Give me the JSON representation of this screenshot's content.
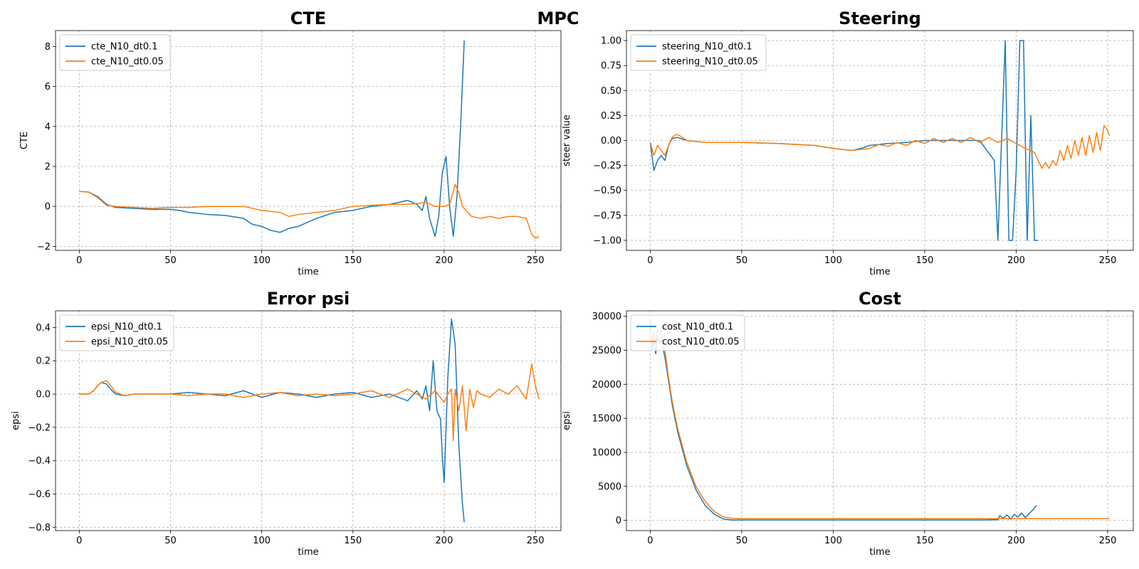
{
  "figure_title": "MPC",
  "chart_data": [
    {
      "type": "line",
      "title": "CTE",
      "xlabel": "time",
      "ylabel": "CTE",
      "xlim": [
        -13,
        264
      ],
      "ylim": [
        -2.2,
        8.8
      ],
      "xticks": [
        0,
        50,
        100,
        150,
        200,
        250
      ],
      "yticks": [
        -2,
        0,
        2,
        4,
        6,
        8
      ],
      "ytick_labels": [
        "−2",
        "0",
        "2",
        "4",
        "6",
        "8"
      ],
      "grid": true,
      "legend_position": "upper-left",
      "series": [
        {
          "name": "cte_N10_dt0.1",
          "color": "#1f77b4",
          "x": [
            0,
            5,
            10,
            15,
            20,
            30,
            40,
            50,
            55,
            60,
            70,
            80,
            90,
            95,
            100,
            105,
            110,
            115,
            120,
            130,
            140,
            150,
            160,
            170,
            180,
            185,
            188,
            190,
            192,
            195,
            197,
            199,
            201,
            203,
            205,
            207,
            209,
            211
          ],
          "y": [
            0.75,
            0.72,
            0.5,
            0.1,
            -0.05,
            -0.1,
            -0.15,
            -0.15,
            -0.2,
            -0.3,
            -0.4,
            -0.45,
            -0.6,
            -0.9,
            -1.0,
            -1.2,
            -1.3,
            -1.1,
            -1.0,
            -0.6,
            -0.3,
            -0.2,
            0.0,
            0.1,
            0.3,
            0.1,
            -0.2,
            0.5,
            -0.6,
            -1.5,
            -0.5,
            1.7,
            2.5,
            0.0,
            -1.5,
            0.5,
            4.0,
            8.3
          ]
        },
        {
          "name": "cte_N10_dt0.05",
          "color": "#ff7f0e",
          "x": [
            0,
            5,
            10,
            15,
            20,
            30,
            40,
            50,
            60,
            70,
            80,
            90,
            100,
            110,
            115,
            120,
            130,
            140,
            150,
            160,
            170,
            180,
            190,
            195,
            200,
            203,
            206,
            208,
            210,
            215,
            220,
            225,
            230,
            235,
            240,
            245,
            248,
            250,
            252
          ],
          "y": [
            0.75,
            0.72,
            0.45,
            0.05,
            0.0,
            -0.05,
            -0.1,
            -0.05,
            -0.05,
            0.0,
            0.0,
            0.0,
            -0.2,
            -0.3,
            -0.5,
            -0.4,
            -0.3,
            -0.2,
            0.0,
            0.05,
            0.1,
            0.1,
            0.2,
            0.0,
            0.0,
            0.1,
            1.1,
            0.7,
            0.0,
            -0.5,
            -0.6,
            -0.5,
            -0.6,
            -0.5,
            -0.5,
            -0.6,
            -1.4,
            -1.6,
            -1.5
          ]
        }
      ]
    },
    {
      "type": "line",
      "title": "Steering",
      "xlabel": "time",
      "ylabel": "steer value",
      "xlim": [
        -13,
        264
      ],
      "ylim": [
        -1.1,
        1.1
      ],
      "xticks": [
        0,
        50,
        100,
        150,
        200,
        250
      ],
      "yticks": [
        -1.0,
        -0.75,
        -0.5,
        -0.25,
        0.0,
        0.25,
        0.5,
        0.75,
        1.0
      ],
      "ytick_labels": [
        "−1.00",
        "−0.75",
        "−0.50",
        "−0.25",
        "0.00",
        "0.25",
        "0.50",
        "0.75",
        "1.00"
      ],
      "grid": true,
      "legend_position": "upper-left",
      "series": [
        {
          "name": "steering_N10_dt0.1",
          "color": "#1f77b4",
          "x": [
            0,
            2,
            4,
            6,
            8,
            10,
            12,
            15,
            20,
            30,
            50,
            70,
            90,
            100,
            110,
            115,
            120,
            130,
            140,
            150,
            160,
            170,
            180,
            188,
            190,
            192,
            194,
            196,
            198,
            200,
            202,
            204,
            206,
            208,
            210,
            212
          ],
          "y": [
            -0.02,
            -0.3,
            -0.2,
            -0.15,
            -0.2,
            -0.05,
            0.02,
            0.03,
            0.0,
            -0.02,
            -0.02,
            -0.03,
            -0.05,
            -0.08,
            -0.1,
            -0.08,
            -0.05,
            -0.03,
            -0.02,
            0.0,
            0.0,
            0.0,
            0.0,
            -0.2,
            -1.0,
            0.0,
            1.0,
            -1.0,
            -1.0,
            -0.3,
            1.0,
            1.0,
            -1.0,
            0.25,
            -1.0,
            -1.0
          ]
        },
        {
          "name": "steering_N10_dt0.05",
          "color": "#ff7f0e",
          "x": [
            0,
            2,
            4,
            6,
            8,
            10,
            12,
            14,
            16,
            20,
            30,
            50,
            70,
            90,
            100,
            110,
            120,
            125,
            130,
            135,
            140,
            145,
            150,
            155,
            160,
            165,
            170,
            175,
            180,
            185,
            190,
            195,
            200,
            205,
            210,
            212,
            214,
            216,
            218,
            220,
            222,
            224,
            226,
            228,
            230,
            232,
            234,
            236,
            238,
            240,
            242,
            244,
            246,
            248,
            250,
            251
          ],
          "y": [
            -0.02,
            -0.15,
            -0.05,
            -0.1,
            -0.15,
            -0.05,
            0.03,
            0.06,
            0.05,
            0.0,
            -0.02,
            -0.02,
            -0.03,
            -0.05,
            -0.08,
            -0.1,
            -0.08,
            -0.04,
            -0.06,
            -0.02,
            -0.05,
            0.0,
            -0.03,
            0.02,
            -0.02,
            0.02,
            -0.02,
            0.03,
            -0.02,
            0.03,
            -0.02,
            0.02,
            -0.03,
            -0.08,
            -0.12,
            -0.2,
            -0.28,
            -0.22,
            -0.28,
            -0.2,
            -0.25,
            -0.1,
            -0.2,
            -0.05,
            -0.18,
            0.0,
            -0.15,
            0.03,
            -0.15,
            0.05,
            -0.12,
            0.08,
            -0.1,
            0.15,
            0.1,
            0.05
          ]
        }
      ]
    },
    {
      "type": "line",
      "title": "Error psi",
      "xlabel": "time",
      "ylabel": "epsi",
      "xlim": [
        -13,
        264
      ],
      "ylim": [
        -0.82,
        0.5
      ],
      "xticks": [
        0,
        50,
        100,
        150,
        200,
        250
      ],
      "yticks": [
        -0.8,
        -0.6,
        -0.4,
        -0.2,
        0.0,
        0.2,
        0.4
      ],
      "ytick_labels": [
        "−0.8",
        "−0.6",
        "−0.4",
        "−0.2",
        "0.0",
        "0.2",
        "0.4"
      ],
      "grid": true,
      "legend_position": "upper-left",
      "series": [
        {
          "name": "epsi_N10_dt0.1",
          "color": "#1f77b4",
          "x": [
            0,
            5,
            8,
            10,
            12,
            15,
            18,
            20,
            25,
            30,
            50,
            60,
            70,
            80,
            90,
            100,
            110,
            120,
            130,
            140,
            150,
            160,
            170,
            180,
            185,
            188,
            190,
            192,
            194,
            196,
            198,
            199,
            200,
            202,
            204,
            206,
            208,
            210,
            211
          ],
          "y": [
            0.0,
            0.0,
            0.02,
            0.05,
            0.07,
            0.06,
            0.02,
            0.0,
            -0.01,
            0.0,
            0.0,
            0.01,
            0.0,
            -0.01,
            0.02,
            -0.02,
            0.01,
            0.0,
            -0.02,
            0.0,
            0.01,
            -0.02,
            0.0,
            -0.04,
            0.02,
            -0.03,
            0.05,
            -0.1,
            0.2,
            -0.1,
            -0.15,
            -0.38,
            -0.53,
            0.1,
            0.45,
            0.3,
            -0.3,
            -0.66,
            -0.77
          ]
        },
        {
          "name": "epsi_N10_dt0.05",
          "color": "#ff7f0e",
          "x": [
            0,
            5,
            8,
            10,
            12,
            15,
            18,
            20,
            25,
            30,
            50,
            60,
            70,
            80,
            90,
            100,
            110,
            120,
            130,
            140,
            150,
            160,
            170,
            180,
            190,
            195,
            200,
            202,
            204,
            205,
            206,
            208,
            210,
            212,
            214,
            216,
            218,
            220,
            225,
            230,
            235,
            240,
            245,
            248,
            250,
            252
          ],
          "y": [
            0.0,
            0.0,
            0.02,
            0.05,
            0.07,
            0.08,
            0.04,
            0.01,
            -0.01,
            0.0,
            0.0,
            -0.01,
            0.0,
            0.0,
            -0.02,
            0.0,
            0.01,
            -0.01,
            0.0,
            -0.01,
            0.0,
            0.02,
            -0.02,
            0.03,
            -0.03,
            0.02,
            -0.05,
            0.0,
            0.03,
            -0.28,
            0.03,
            -0.1,
            0.05,
            -0.22,
            0.03,
            -0.08,
            0.02,
            0.0,
            -0.02,
            0.03,
            0.0,
            0.05,
            -0.03,
            0.18,
            0.05,
            -0.03
          ]
        }
      ]
    },
    {
      "type": "line",
      "title": "Cost",
      "xlabel": "time",
      "ylabel": "epsi",
      "xlim": [
        -13,
        264
      ],
      "ylim": [
        -1500,
        30800
      ],
      "xticks": [
        0,
        50,
        100,
        150,
        200,
        250
      ],
      "yticks": [
        0,
        5000,
        10000,
        15000,
        20000,
        25000,
        30000
      ],
      "ytick_labels": [
        "0",
        "5000",
        "10000",
        "15000",
        "20000",
        "25000",
        "30000"
      ],
      "grid": true,
      "legend_position": "upper-left",
      "series": [
        {
          "name": "cost_N10_dt0.1",
          "color": "#1f77b4",
          "x": [
            0,
            1,
            2,
            3,
            4,
            5,
            6,
            8,
            10,
            12,
            15,
            18,
            20,
            25,
            30,
            35,
            40,
            45,
            50,
            100,
            150,
            180,
            190,
            191,
            193,
            195,
            197,
            199,
            201,
            203,
            205,
            207,
            209,
            211
          ],
          "y": [
            29500,
            25000,
            26500,
            24500,
            27000,
            26000,
            26500,
            24000,
            20500,
            17000,
            13000,
            10000,
            8000,
            4500,
            2200,
            900,
            200,
            50,
            50,
            50,
            50,
            60,
            100,
            700,
            300,
            800,
            200,
            900,
            500,
            1100,
            400,
            1000,
            1500,
            2200
          ]
        },
        {
          "name": "cost_N10_dt0.05",
          "color": "#ff7f0e",
          "x": [
            0,
            1,
            2,
            3,
            4,
            5,
            6,
            8,
            10,
            12,
            15,
            18,
            20,
            25,
            30,
            35,
            40,
            45,
            50,
            100,
            150,
            200,
            250,
            251
          ],
          "y": [
            28500,
            26000,
            27500,
            26000,
            28000,
            27500,
            27800,
            25000,
            21000,
            17500,
            13500,
            10500,
            8500,
            5000,
            2800,
            1300,
            500,
            300,
            250,
            250,
            250,
            250,
            250,
            250
          ]
        }
      ]
    }
  ]
}
